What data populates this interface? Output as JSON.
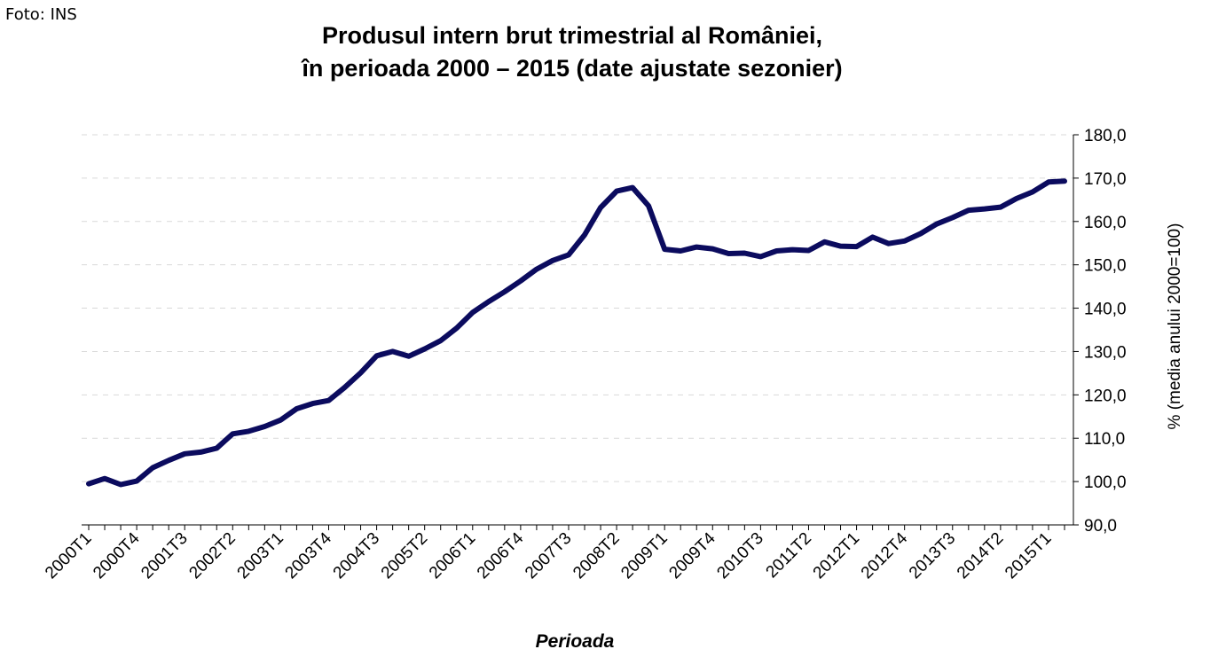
{
  "credit": "Foto: INS",
  "chart_data": {
    "type": "line",
    "title_line1": "Produsul intern brut trimestrial al României,",
    "title_line2": "în perioada 2000 – 2015 (date ajustate sezonier)",
    "xlabel": "Perioada",
    "ylabel": "% (media anului 2000=100)",
    "ylim": [
      90,
      180
    ],
    "y_ticks": [
      "90,0",
      "100,0",
      "110,0",
      "120,0",
      "130,0",
      "140,0",
      "150,0",
      "160,0",
      "170,0",
      "180,0"
    ],
    "y_axis_side": "right",
    "grid": true,
    "grid_style": "dashed-light",
    "line_color": "#0b0b5e",
    "x_tick_labels": [
      "2000T1",
      "2000T4",
      "2001T3",
      "2002T2",
      "2003T1",
      "2003T4",
      "2004T3",
      "2005T2",
      "2006T1",
      "2006T4",
      "2007T3",
      "2008T2",
      "2009T1",
      "2009T4",
      "2010T3",
      "2011T2",
      "2012T1",
      "2012T4",
      "2013T3",
      "2014T2",
      "2015T1"
    ],
    "x_tick_every": 3,
    "series": [
      {
        "values": [
          99.5,
          100.7,
          99.3,
          100.1,
          103.2,
          104.9,
          106.4,
          106.8,
          107.7,
          111.0,
          111.6,
          112.7,
          114.2,
          116.8,
          118.0,
          118.7,
          121.7,
          125.1,
          129.0,
          130.0,
          128.9,
          130.6,
          132.5,
          135.4,
          139.0,
          141.5,
          143.8,
          146.3,
          149.0,
          151.0,
          152.3,
          156.9,
          163.2,
          167.0,
          167.8,
          163.6,
          153.6,
          153.2,
          154.1,
          153.7,
          152.6,
          152.7,
          151.9,
          153.2,
          153.5,
          153.3,
          155.3,
          154.3,
          154.2,
          156.4,
          154.9,
          155.5,
          157.2,
          159.4,
          160.9,
          162.6,
          162.9,
          163.3,
          165.3,
          166.8,
          169.1,
          169.3
        ]
      }
    ]
  }
}
